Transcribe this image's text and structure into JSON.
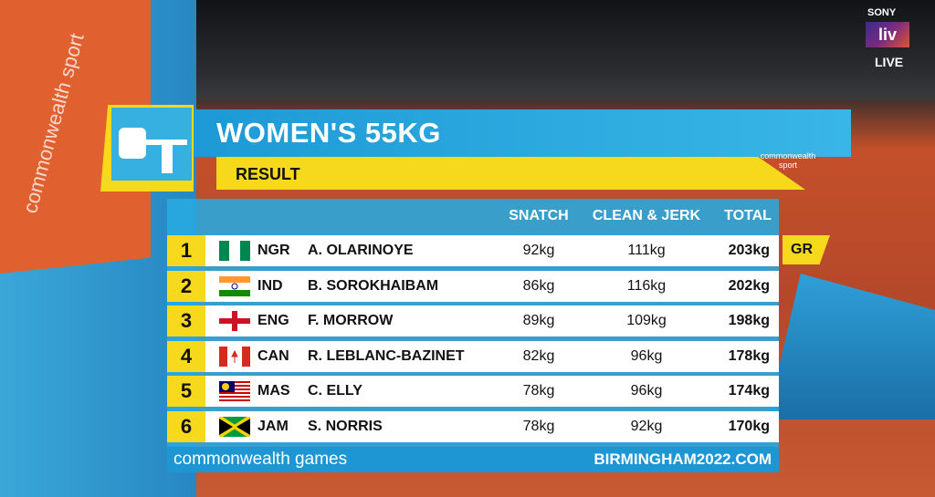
{
  "header": {
    "title": "WOMEN'S 55KG",
    "subtitle": "RESULT",
    "logo": "commonwealth sport"
  },
  "table": {
    "columns": [
      "SNATCH",
      "CLEAN & JERK",
      "TOTAL"
    ],
    "rows": [
      [
        "1",
        "NGR",
        "A. OLARINOYE",
        "92kg",
        "111kg",
        "203kg"
      ],
      [
        "2",
        "IND",
        "B. SOROKHAIBAM",
        "86kg",
        "116kg",
        "202kg"
      ],
      [
        "3",
        "ENG",
        "F. MORROW",
        "89kg",
        "109kg",
        "198kg"
      ],
      [
        "4",
        "CAN",
        "R. LEBLANC-BAZINET",
        "82kg",
        "96kg",
        "178kg"
      ],
      [
        "5",
        "MAS",
        "C. ELLY",
        "78kg",
        "96kg",
        "174kg"
      ],
      [
        "6",
        "JAM",
        "S. NORRIS",
        "78kg",
        "92kg",
        "170kg"
      ]
    ]
  },
  "record_badge": "GR",
  "footer": {
    "left": "commonwealth games",
    "right": "BIRMINGHAM2022.COM"
  },
  "broadcaster": {
    "brand": "SONY",
    "app": "liv",
    "status": "LIVE"
  },
  "banner": "commonwealth sport"
}
